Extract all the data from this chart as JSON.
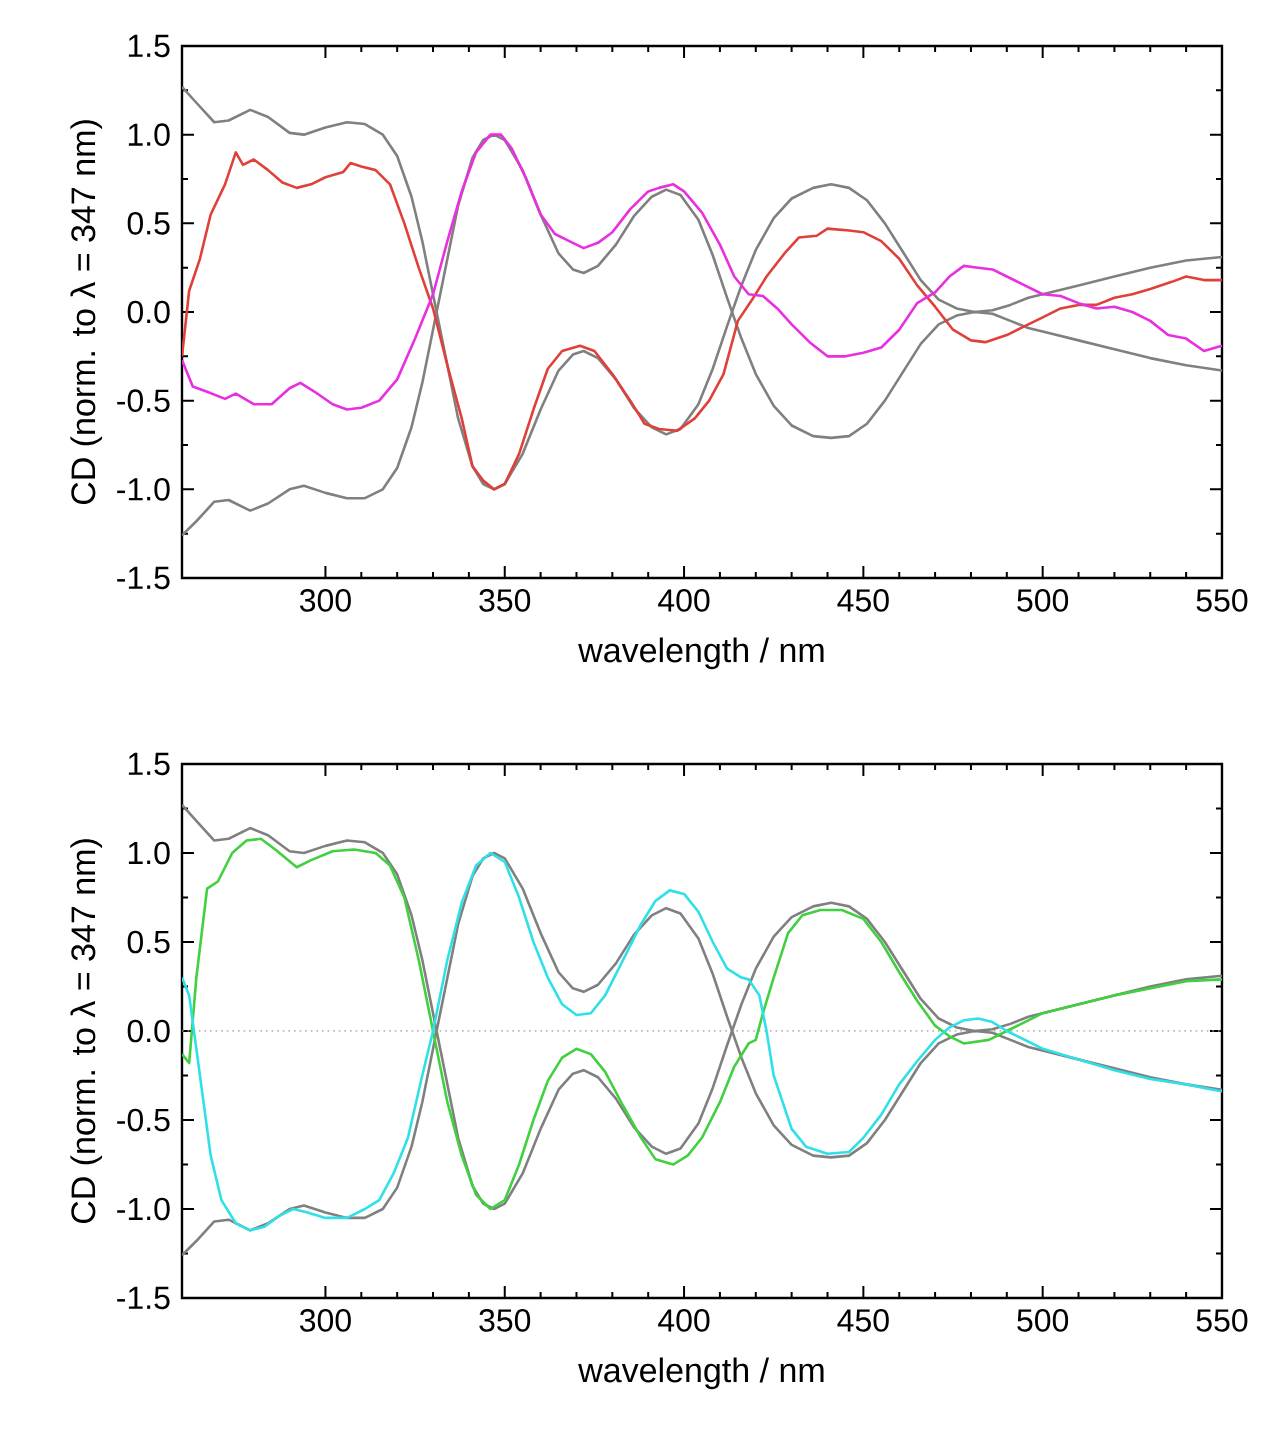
{
  "chart_data": [
    {
      "type": "line",
      "xlabel": "wavelength / nm",
      "ylabel": "CD (norm. to λ = 347 nm)",
      "xlim": [
        260,
        550
      ],
      "ylim": [
        -1.5,
        1.5
      ],
      "xticks": [
        300,
        350,
        400,
        450,
        500,
        550
      ],
      "yticks": [
        {
          "value": -1.5,
          "label": "-1.5"
        },
        {
          "value": -1,
          "label": "-1.0"
        },
        {
          "value": -0.5,
          "label": "-0.5"
        },
        {
          "value": 0,
          "label": "0.0"
        },
        {
          "value": 0.5,
          "label": "0.5"
        },
        {
          "value": 1,
          "label": "1.0"
        },
        {
          "value": 1.5,
          "label": "1.5"
        }
      ],
      "series": [
        {
          "color": "#808080",
          "x": [
            260,
            264,
            269,
            273,
            279,
            284,
            290,
            294,
            300,
            306,
            311,
            316,
            320,
            324,
            327,
            330,
            333,
            337,
            341,
            344,
            347,
            350,
            355,
            360,
            365,
            369,
            372,
            376,
            381,
            386,
            391,
            395,
            399,
            404,
            408,
            412,
            416,
            420,
            425,
            430,
            436,
            441,
            446,
            451,
            456,
            461,
            466,
            471,
            476,
            481,
            486,
            491,
            496,
            502,
            510,
            520,
            530,
            540,
            550
          ],
          "values": [
            1.27,
            1.18,
            1.07,
            1.08,
            1.14,
            1.1,
            1.01,
            1.0,
            1.04,
            1.07,
            1.06,
            1.0,
            0.88,
            0.65,
            0.4,
            0.1,
            -0.2,
            -0.6,
            -0.87,
            -0.97,
            -1.0,
            -0.97,
            -0.8,
            -0.55,
            -0.33,
            -0.24,
            -0.22,
            -0.26,
            -0.38,
            -0.54,
            -0.65,
            -0.69,
            -0.66,
            -0.52,
            -0.32,
            -0.08,
            0.15,
            0.35,
            0.53,
            0.64,
            0.7,
            0.72,
            0.7,
            0.63,
            0.5,
            0.34,
            0.18,
            0.07,
            0.02,
            0.0,
            0.01,
            0.04,
            0.08,
            0.11,
            0.15,
            0.2,
            0.25,
            0.29,
            0.31
          ]
        },
        {
          "color": "#808080",
          "x": [
            260,
            264,
            269,
            273,
            279,
            284,
            290,
            294,
            300,
            306,
            311,
            316,
            320,
            324,
            327,
            330,
            333,
            337,
            341,
            344,
            347,
            350,
            355,
            360,
            365,
            369,
            372,
            376,
            381,
            386,
            391,
            395,
            399,
            404,
            408,
            412,
            416,
            420,
            425,
            430,
            436,
            441,
            446,
            451,
            456,
            461,
            466,
            471,
            476,
            481,
            486,
            491,
            496,
            502,
            510,
            520,
            530,
            540,
            550
          ],
          "values": [
            -1.26,
            -1.18,
            -1.07,
            -1.06,
            -1.12,
            -1.08,
            -1.0,
            -0.98,
            -1.02,
            -1.05,
            -1.05,
            -1.0,
            -0.88,
            -0.65,
            -0.4,
            -0.1,
            0.2,
            0.6,
            0.87,
            0.97,
            1.0,
            0.97,
            0.8,
            0.55,
            0.33,
            0.24,
            0.22,
            0.26,
            0.38,
            0.54,
            0.65,
            0.69,
            0.66,
            0.52,
            0.32,
            0.08,
            -0.15,
            -0.35,
            -0.53,
            -0.64,
            -0.7,
            -0.71,
            -0.7,
            -0.63,
            -0.5,
            -0.34,
            -0.18,
            -0.07,
            -0.02,
            0.0,
            -0.01,
            -0.05,
            -0.09,
            -0.12,
            -0.16,
            -0.21,
            -0.26,
            -0.3,
            -0.33
          ]
        },
        {
          "color": "#e0403a",
          "x": [
            260,
            262,
            265,
            268,
            272,
            275,
            277,
            280,
            284,
            288,
            292,
            296,
            300,
            305,
            307,
            310,
            314,
            318,
            322,
            326,
            330,
            334,
            338,
            341,
            344,
            347,
            350,
            354,
            358,
            362,
            366,
            371,
            375,
            380,
            385,
            389,
            393,
            398,
            403,
            407,
            411,
            415,
            419,
            423,
            428,
            432,
            437,
            440,
            446,
            450,
            455,
            460,
            465,
            470,
            475,
            480,
            484,
            490,
            495,
            500,
            505,
            510,
            515,
            520,
            525,
            530,
            536,
            540,
            545,
            550
          ],
          "values": [
            -0.25,
            0.12,
            0.3,
            0.55,
            0.72,
            0.9,
            0.83,
            0.86,
            0.8,
            0.73,
            0.7,
            0.72,
            0.76,
            0.79,
            0.84,
            0.82,
            0.8,
            0.72,
            0.5,
            0.25,
            0.02,
            -0.3,
            -0.6,
            -0.87,
            -0.95,
            -1.0,
            -0.97,
            -0.8,
            -0.55,
            -0.32,
            -0.22,
            -0.19,
            -0.22,
            -0.35,
            -0.5,
            -0.63,
            -0.66,
            -0.67,
            -0.6,
            -0.5,
            -0.35,
            -0.05,
            0.07,
            0.2,
            0.33,
            0.42,
            0.43,
            0.47,
            0.46,
            0.45,
            0.4,
            0.3,
            0.15,
            0.03,
            -0.1,
            -0.16,
            -0.17,
            -0.13,
            -0.08,
            -0.03,
            0.02,
            0.04,
            0.04,
            0.08,
            0.1,
            0.13,
            0.17,
            0.2,
            0.18,
            0.18
          ]
        },
        {
          "color": "#e830e0",
          "x": [
            260,
            263,
            267,
            272,
            275,
            280,
            285,
            290,
            293,
            297,
            302,
            306,
            310,
            315,
            320,
            325,
            330,
            334,
            338,
            342,
            346,
            349,
            352,
            356,
            360,
            364,
            368,
            372,
            376,
            380,
            385,
            390,
            393,
            397,
            400,
            405,
            410,
            414,
            418,
            422,
            426,
            430,
            435,
            440,
            445,
            450,
            455,
            460,
            465,
            470,
            474,
            478,
            482,
            486,
            490,
            495,
            500,
            505,
            510,
            515,
            520,
            525,
            530,
            535,
            540,
            545,
            550
          ],
          "values": [
            -0.27,
            -0.42,
            -0.45,
            -0.49,
            -0.46,
            -0.52,
            -0.52,
            -0.43,
            -0.4,
            -0.45,
            -0.52,
            -0.55,
            -0.54,
            -0.5,
            -0.38,
            -0.15,
            0.1,
            0.4,
            0.68,
            0.9,
            1.0,
            1.0,
            0.92,
            0.75,
            0.55,
            0.44,
            0.4,
            0.36,
            0.39,
            0.45,
            0.58,
            0.68,
            0.7,
            0.72,
            0.68,
            0.56,
            0.38,
            0.2,
            0.1,
            0.09,
            0.02,
            -0.07,
            -0.17,
            -0.25,
            -0.25,
            -0.23,
            -0.2,
            -0.1,
            0.05,
            0.11,
            0.2,
            0.26,
            0.25,
            0.24,
            0.2,
            0.15,
            0.1,
            0.09,
            0.05,
            0.02,
            0.03,
            0.0,
            -0.05,
            -0.13,
            -0.15,
            -0.22,
            -0.19
          ]
        }
      ]
    },
    {
      "type": "line",
      "xlabel": "wavelength / nm",
      "ylabel": "CD (norm. to λ = 347 nm)",
      "xlim": [
        260,
        550
      ],
      "ylim": [
        -1.5,
        1.5
      ],
      "xticks": [
        300,
        350,
        400,
        450,
        500,
        550
      ],
      "yticks": [
        {
          "value": -1.5,
          "label": "-1.5"
        },
        {
          "value": -1,
          "label": "-1.0"
        },
        {
          "value": -0.5,
          "label": "-0.5"
        },
        {
          "value": 0,
          "label": "0.0"
        },
        {
          "value": 0.5,
          "label": "0.5"
        },
        {
          "value": 1,
          "label": "1.0"
        },
        {
          "value": 1.5,
          "label": "1.5"
        }
      ],
      "ref_lines": [
        {
          "axis": "y",
          "value": 0,
          "color": "#a0a0a0",
          "line_style": "dotted"
        }
      ],
      "series": [
        {
          "color": "#808080",
          "x": [
            260,
            264,
            269,
            273,
            279,
            284,
            290,
            294,
            300,
            306,
            311,
            316,
            320,
            324,
            327,
            330,
            333,
            337,
            341,
            344,
            347,
            350,
            355,
            360,
            365,
            369,
            372,
            376,
            381,
            386,
            391,
            395,
            399,
            404,
            408,
            412,
            416,
            420,
            425,
            430,
            436,
            441,
            446,
            451,
            456,
            461,
            466,
            471,
            476,
            481,
            486,
            491,
            496,
            502,
            510,
            520,
            530,
            540,
            550
          ],
          "values": [
            1.27,
            1.18,
            1.07,
            1.08,
            1.14,
            1.1,
            1.01,
            1.0,
            1.04,
            1.07,
            1.06,
            1.0,
            0.88,
            0.65,
            0.4,
            0.1,
            -0.2,
            -0.6,
            -0.87,
            -0.97,
            -1.0,
            -0.97,
            -0.8,
            -0.55,
            -0.33,
            -0.24,
            -0.22,
            -0.26,
            -0.38,
            -0.54,
            -0.65,
            -0.69,
            -0.66,
            -0.52,
            -0.32,
            -0.08,
            0.15,
            0.35,
            0.53,
            0.64,
            0.7,
            0.72,
            0.7,
            0.63,
            0.5,
            0.34,
            0.18,
            0.07,
            0.02,
            0.0,
            0.01,
            0.04,
            0.08,
            null,
            0.15,
            0.2,
            0.25,
            0.29,
            0.31
          ]
        },
        {
          "color": "#808080",
          "x": [
            260,
            264,
            269,
            273,
            279,
            284,
            290,
            294,
            300,
            306,
            311,
            316,
            320,
            324,
            327,
            330,
            333,
            337,
            341,
            344,
            347,
            350,
            355,
            360,
            365,
            369,
            372,
            376,
            381,
            386,
            391,
            395,
            399,
            404,
            408,
            412,
            416,
            420,
            425,
            430,
            436,
            441,
            446,
            451,
            456,
            461,
            466,
            471,
            476,
            481,
            486,
            491,
            496,
            502,
            510,
            520,
            530,
            540,
            550
          ],
          "values": [
            -1.26,
            -1.18,
            -1.07,
            -1.06,
            -1.12,
            -1.08,
            -1.0,
            -0.98,
            -1.02,
            -1.05,
            -1.05,
            -1.0,
            -0.88,
            -0.65,
            -0.4,
            -0.1,
            0.2,
            0.6,
            0.87,
            0.97,
            1.0,
            0.97,
            0.8,
            0.55,
            0.33,
            0.24,
            0.22,
            0.26,
            0.38,
            0.54,
            0.65,
            0.69,
            0.66,
            0.52,
            0.32,
            0.08,
            -0.15,
            -0.35,
            -0.53,
            -0.64,
            -0.7,
            -0.71,
            -0.7,
            -0.63,
            -0.5,
            -0.34,
            -0.18,
            -0.07,
            -0.02,
            0.0,
            -0.01,
            -0.05,
            -0.09,
            -0.12,
            null,
            -0.21,
            -0.26,
            -0.3,
            -0.33
          ]
        },
        {
          "color": "#40d040",
          "x": [
            260,
            262,
            264,
            267,
            270,
            274,
            278,
            282,
            286,
            292,
            296,
            302,
            308,
            314,
            318,
            322,
            326,
            330,
            334,
            338,
            342,
            346,
            350,
            354,
            358,
            362,
            366,
            370,
            374,
            378,
            383,
            388,
            392,
            397,
            401,
            405,
            410,
            414,
            418,
            420,
            422,
            425,
            429,
            433,
            438,
            444,
            450,
            455,
            460,
            465,
            470,
            474,
            478,
            485,
            490,
            495,
            500,
            510,
            520,
            530,
            540,
            550
          ],
          "values": [
            -0.13,
            -0.18,
            0.3,
            0.8,
            0.84,
            1.0,
            1.07,
            1.08,
            1.02,
            0.92,
            0.96,
            1.01,
            1.02,
            1.0,
            0.93,
            0.75,
            0.4,
            0.0,
            -0.4,
            -0.7,
            -0.92,
            -1.0,
            -0.95,
            -0.75,
            -0.5,
            -0.28,
            -0.15,
            -0.1,
            -0.13,
            -0.23,
            -0.42,
            -0.6,
            -0.72,
            -0.75,
            -0.7,
            -0.6,
            -0.4,
            -0.2,
            -0.07,
            -0.05,
            0.1,
            0.3,
            0.55,
            0.65,
            0.68,
            0.68,
            0.63,
            0.5,
            0.33,
            0.17,
            0.03,
            -0.03,
            -0.07,
            -0.05,
            0.0,
            0.05,
            0.1,
            0.15,
            0.2,
            0.24,
            0.28,
            0.29
          ]
        },
        {
          "color": "#30e0e8",
          "x": [
            260,
            262,
            264,
            266,
            268,
            271,
            275,
            279,
            283,
            287,
            291,
            295,
            300,
            306,
            311,
            315,
            319,
            323,
            327,
            330,
            334,
            338,
            342,
            346,
            350,
            354,
            358,
            362,
            366,
            370,
            374,
            378,
            383,
            388,
            392,
            396,
            400,
            404,
            408,
            412,
            416,
            418,
            421,
            423,
            425,
            430,
            434,
            440,
            446,
            450,
            455,
            460,
            465,
            470,
            474,
            478,
            482,
            486,
            490,
            495,
            500,
            510,
            520,
            530,
            540,
            550
          ],
          "values": [
            0.3,
            0.2,
            -0.1,
            -0.4,
            -0.7,
            -0.95,
            -1.08,
            -1.12,
            -1.1,
            -1.04,
            -1.0,
            -1.02,
            -1.05,
            -1.05,
            -1.0,
            -0.95,
            -0.8,
            -0.6,
            -0.25,
            0.0,
            0.4,
            0.72,
            0.93,
            1.0,
            0.95,
            0.75,
            0.5,
            0.3,
            0.15,
            0.09,
            0.1,
            0.2,
            0.4,
            0.6,
            0.73,
            0.79,
            0.77,
            0.67,
            0.5,
            0.35,
            0.3,
            0.29,
            0.2,
            0.0,
            -0.25,
            -0.55,
            -0.65,
            -0.69,
            -0.68,
            -0.6,
            -0.47,
            -0.3,
            -0.17,
            -0.05,
            0.02,
            0.06,
            0.07,
            0.05,
            0.0,
            -0.05,
            -0.1,
            -0.16,
            -0.22,
            -0.27,
            -0.3,
            -0.34
          ]
        }
      ]
    }
  ]
}
